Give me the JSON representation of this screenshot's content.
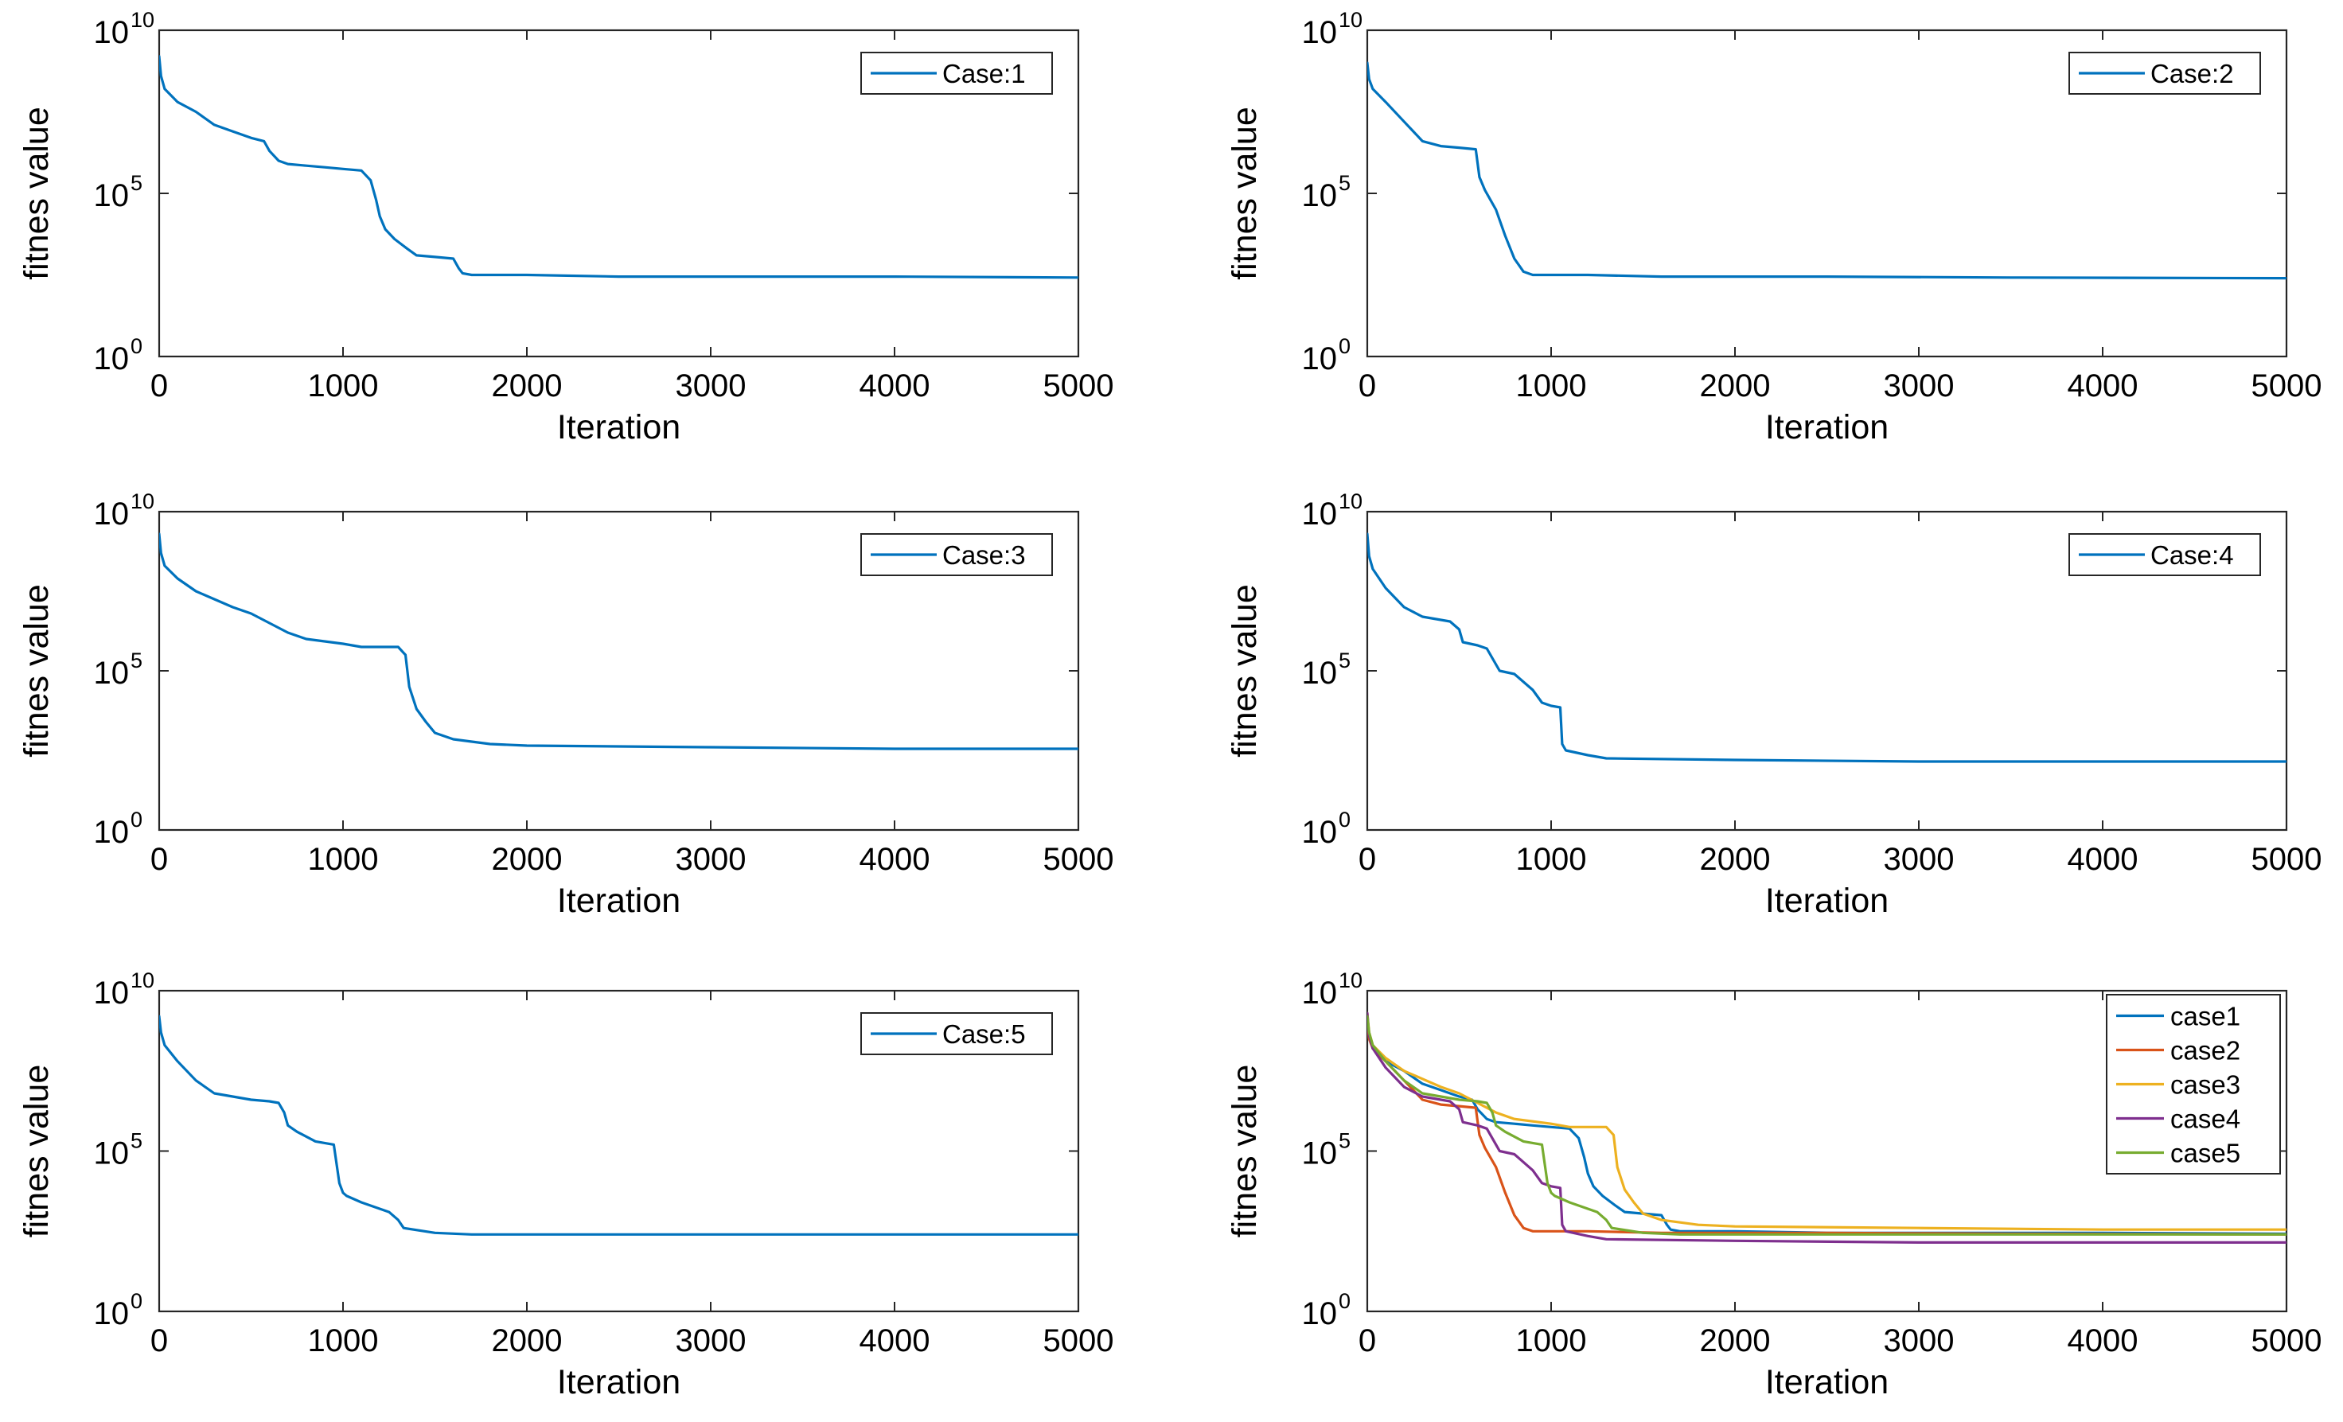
{
  "colors": {
    "case1": "#0072BD",
    "case2": "#D95319",
    "case3": "#EDB120",
    "case4": "#7E2F8E",
    "case5": "#77AC30"
  },
  "chart_data": [
    {
      "id": "case1",
      "type": "line",
      "xlabel": "Iteration",
      "ylabel": "fitnes value",
      "yscale": "log",
      "xlim": [
        0,
        5000
      ],
      "ylim_exp": [
        0,
        10
      ],
      "xticks": [
        "0",
        "1000",
        "2000",
        "3000",
        "4000",
        "5000"
      ],
      "yticks": [
        {
          "base": "10",
          "exp": "0",
          "v": 0
        },
        {
          "base": "10",
          "exp": "5",
          "v": 5
        },
        {
          "base": "10",
          "exp": "10",
          "v": 10
        }
      ],
      "legend_location": "top-right",
      "series": [
        {
          "name": "Case:1",
          "color_key": "case1",
          "x": [
            0,
            10,
            30,
            100,
            200,
            300,
            400,
            500,
            570,
            600,
            650,
            700,
            800,
            900,
            1000,
            1100,
            1150,
            1180,
            1200,
            1230,
            1280,
            1350,
            1400,
            1500,
            1600,
            1630,
            1650,
            1700,
            2000,
            2500,
            3000,
            4000,
            5000
          ],
          "y_log10": [
            9.2,
            8.6,
            8.2,
            7.8,
            7.5,
            7.1,
            6.9,
            6.7,
            6.6,
            6.3,
            6.0,
            5.9,
            5.85,
            5.8,
            5.75,
            5.7,
            5.4,
            4.8,
            4.3,
            3.9,
            3.6,
            3.3,
            3.1,
            3.05,
            3.0,
            2.7,
            2.55,
            2.5,
            2.5,
            2.45,
            2.45,
            2.45,
            2.42
          ]
        }
      ]
    },
    {
      "id": "case2",
      "type": "line",
      "xlabel": "Iteration",
      "ylabel": "fitnes value",
      "yscale": "log",
      "xlim": [
        0,
        5000
      ],
      "ylim_exp": [
        0,
        10
      ],
      "xticks": [
        "0",
        "1000",
        "2000",
        "3000",
        "4000",
        "5000"
      ],
      "yticks": [
        {
          "base": "10",
          "exp": "0",
          "v": 0
        },
        {
          "base": "10",
          "exp": "5",
          "v": 5
        },
        {
          "base": "10",
          "exp": "10",
          "v": 10
        }
      ],
      "legend_location": "top-right",
      "series": [
        {
          "name": "Case:2",
          "color_key": "case2",
          "stroke_key": "case1",
          "x": [
            0,
            10,
            30,
            100,
            200,
            250,
            300,
            400,
            500,
            590,
            610,
            640,
            700,
            750,
            800,
            850,
            900,
            1200,
            1600,
            2500,
            3500,
            5000
          ],
          "y_log10": [
            9.0,
            8.5,
            8.2,
            7.8,
            7.2,
            6.9,
            6.6,
            6.45,
            6.4,
            6.35,
            5.5,
            5.1,
            4.5,
            3.7,
            3.0,
            2.6,
            2.5,
            2.5,
            2.45,
            2.45,
            2.42,
            2.4
          ]
        }
      ]
    },
    {
      "id": "case3",
      "type": "line",
      "xlabel": "Iteration",
      "ylabel": "fitnes value",
      "yscale": "log",
      "xlim": [
        0,
        5000
      ],
      "ylim_exp": [
        0,
        10
      ],
      "xticks": [
        "0",
        "1000",
        "2000",
        "3000",
        "4000",
        "5000"
      ],
      "yticks": [
        {
          "base": "10",
          "exp": "0",
          "v": 0
        },
        {
          "base": "10",
          "exp": "5",
          "v": 5
        },
        {
          "base": "10",
          "exp": "10",
          "v": 10
        }
      ],
      "legend_location": "top-right",
      "series": [
        {
          "name": "Case:3",
          "color_key": "case3",
          "stroke_key": "case1",
          "x": [
            0,
            10,
            30,
            100,
            200,
            300,
            400,
            500,
            600,
            700,
            800,
            1000,
            1100,
            1300,
            1340,
            1360,
            1400,
            1450,
            1500,
            1600,
            1800,
            2000,
            3000,
            4000,
            5000
          ],
          "y_log10": [
            9.3,
            8.7,
            8.3,
            7.9,
            7.5,
            7.25,
            7.0,
            6.8,
            6.5,
            6.2,
            6.0,
            5.85,
            5.75,
            5.75,
            5.5,
            4.5,
            3.8,
            3.4,
            3.05,
            2.85,
            2.7,
            2.65,
            2.6,
            2.55,
            2.55
          ]
        }
      ]
    },
    {
      "id": "case4",
      "type": "line",
      "xlabel": "Iteration",
      "ylabel": "fitnes value",
      "yscale": "log",
      "xlim": [
        0,
        5000
      ],
      "ylim_exp": [
        0,
        10
      ],
      "xticks": [
        "0",
        "1000",
        "2000",
        "3000",
        "4000",
        "5000"
      ],
      "yticks": [
        {
          "base": "10",
          "exp": "0",
          "v": 0
        },
        {
          "base": "10",
          "exp": "5",
          "v": 5
        },
        {
          "base": "10",
          "exp": "10",
          "v": 10
        }
      ],
      "legend_location": "top-right",
      "series": [
        {
          "name": "Case:4",
          "color_key": "case4",
          "stroke_key": "case1",
          "x": [
            0,
            10,
            30,
            100,
            200,
            300,
            450,
            500,
            520,
            600,
            650,
            700,
            720,
            800,
            900,
            950,
            1000,
            1050,
            1060,
            1080,
            1200,
            1300,
            2000,
            3000,
            4000,
            5000
          ],
          "y_log10": [
            9.3,
            8.6,
            8.2,
            7.6,
            7.0,
            6.7,
            6.55,
            6.3,
            5.9,
            5.8,
            5.7,
            5.2,
            5.0,
            4.9,
            4.4,
            4.0,
            3.9,
            3.85,
            2.7,
            2.5,
            2.35,
            2.25,
            2.2,
            2.15,
            2.15,
            2.15
          ]
        }
      ]
    },
    {
      "id": "case5",
      "type": "line",
      "xlabel": "Iteration",
      "ylabel": "fitnes value",
      "yscale": "log",
      "xlim": [
        0,
        5000
      ],
      "ylim_exp": [
        0,
        10
      ],
      "xticks": [
        "0",
        "1000",
        "2000",
        "3000",
        "4000",
        "5000"
      ],
      "yticks": [
        {
          "base": "10",
          "exp": "0",
          "v": 0
        },
        {
          "base": "10",
          "exp": "5",
          "v": 5
        },
        {
          "base": "10",
          "exp": "10",
          "v": 10
        }
      ],
      "legend_location": "top-right",
      "series": [
        {
          "name": "Case:5",
          "color_key": "case5",
          "stroke_key": "case1",
          "x": [
            0,
            10,
            30,
            100,
            200,
            300,
            400,
            500,
            600,
            650,
            680,
            700,
            750,
            850,
            950,
            980,
            1000,
            1020,
            1100,
            1250,
            1300,
            1330,
            1500,
            1700,
            2000,
            3000,
            4000,
            5000
          ],
          "y_log10": [
            9.2,
            8.7,
            8.3,
            7.8,
            7.2,
            6.8,
            6.7,
            6.6,
            6.55,
            6.5,
            6.2,
            5.8,
            5.6,
            5.3,
            5.2,
            4.0,
            3.7,
            3.6,
            3.4,
            3.1,
            2.85,
            2.6,
            2.45,
            2.4,
            2.4,
            2.4,
            2.4,
            2.4
          ]
        }
      ]
    },
    {
      "id": "combined",
      "type": "line",
      "xlabel": "Iteration",
      "ylabel": "fitnes value",
      "yscale": "log",
      "xlim": [
        0,
        5000
      ],
      "ylim_exp": [
        0,
        10
      ],
      "xticks": [
        "0",
        "1000",
        "2000",
        "3000",
        "4000",
        "5000"
      ],
      "yticks": [
        {
          "base": "10",
          "exp": "0",
          "v": 0
        },
        {
          "base": "10",
          "exp": "5",
          "v": 5
        },
        {
          "base": "10",
          "exp": "10",
          "v": 10
        }
      ],
      "legend_location": "top-right",
      "series": [
        {
          "name": "case1",
          "color_key": "case1",
          "x": [
            0,
            10,
            30,
            100,
            200,
            300,
            400,
            500,
            570,
            600,
            650,
            700,
            800,
            900,
            1000,
            1100,
            1150,
            1180,
            1200,
            1230,
            1280,
            1350,
            1400,
            1500,
            1600,
            1630,
            1650,
            1700,
            2000,
            2500,
            3000,
            4000,
            5000
          ],
          "y_log10": [
            9.2,
            8.6,
            8.2,
            7.8,
            7.5,
            7.1,
            6.9,
            6.7,
            6.6,
            6.3,
            6.0,
            5.9,
            5.85,
            5.8,
            5.75,
            5.7,
            5.4,
            4.8,
            4.3,
            3.9,
            3.6,
            3.3,
            3.1,
            3.05,
            3.0,
            2.7,
            2.55,
            2.5,
            2.5,
            2.45,
            2.45,
            2.45,
            2.42
          ]
        },
        {
          "name": "case2",
          "color_key": "case2",
          "x": [
            0,
            10,
            30,
            100,
            200,
            250,
            300,
            400,
            500,
            590,
            610,
            640,
            700,
            750,
            800,
            850,
            900,
            1200,
            1600,
            2500,
            3500,
            5000
          ],
          "y_log10": [
            9.0,
            8.5,
            8.2,
            7.8,
            7.2,
            6.9,
            6.6,
            6.45,
            6.4,
            6.35,
            5.5,
            5.1,
            4.5,
            3.7,
            3.0,
            2.6,
            2.5,
            2.5,
            2.45,
            2.45,
            2.42,
            2.4
          ]
        },
        {
          "name": "case3",
          "color_key": "case3",
          "x": [
            0,
            10,
            30,
            100,
            200,
            300,
            400,
            500,
            600,
            700,
            800,
            1000,
            1100,
            1300,
            1340,
            1360,
            1400,
            1450,
            1500,
            1600,
            1800,
            2000,
            3000,
            4000,
            5000
          ],
          "y_log10": [
            9.3,
            8.7,
            8.3,
            7.9,
            7.5,
            7.25,
            7.0,
            6.8,
            6.5,
            6.2,
            6.0,
            5.85,
            5.75,
            5.75,
            5.5,
            4.5,
            3.8,
            3.4,
            3.05,
            2.85,
            2.7,
            2.65,
            2.6,
            2.55,
            2.55
          ]
        },
        {
          "name": "case4",
          "color_key": "case4",
          "x": [
            0,
            10,
            30,
            100,
            200,
            300,
            450,
            500,
            520,
            600,
            650,
            700,
            720,
            800,
            900,
            950,
            1000,
            1050,
            1060,
            1080,
            1200,
            1300,
            2000,
            3000,
            4000,
            5000
          ],
          "y_log10": [
            9.3,
            8.6,
            8.2,
            7.6,
            7.0,
            6.7,
            6.55,
            6.3,
            5.9,
            5.8,
            5.7,
            5.2,
            5.0,
            4.9,
            4.4,
            4.0,
            3.9,
            3.85,
            2.7,
            2.5,
            2.35,
            2.25,
            2.2,
            2.15,
            2.15,
            2.15
          ]
        },
        {
          "name": "case5",
          "color_key": "case5",
          "x": [
            0,
            10,
            30,
            100,
            200,
            300,
            400,
            500,
            600,
            650,
            680,
            700,
            750,
            850,
            950,
            980,
            1000,
            1020,
            1100,
            1250,
            1300,
            1330,
            1500,
            1700,
            2000,
            3000,
            4000,
            5000
          ],
          "y_log10": [
            9.2,
            8.7,
            8.3,
            7.8,
            7.2,
            6.8,
            6.7,
            6.6,
            6.55,
            6.5,
            6.2,
            5.8,
            5.6,
            5.3,
            5.2,
            4.0,
            3.7,
            3.6,
            3.4,
            3.1,
            2.85,
            2.6,
            2.45,
            2.4,
            2.4,
            2.4,
            2.4,
            2.4
          ]
        }
      ]
    }
  ]
}
